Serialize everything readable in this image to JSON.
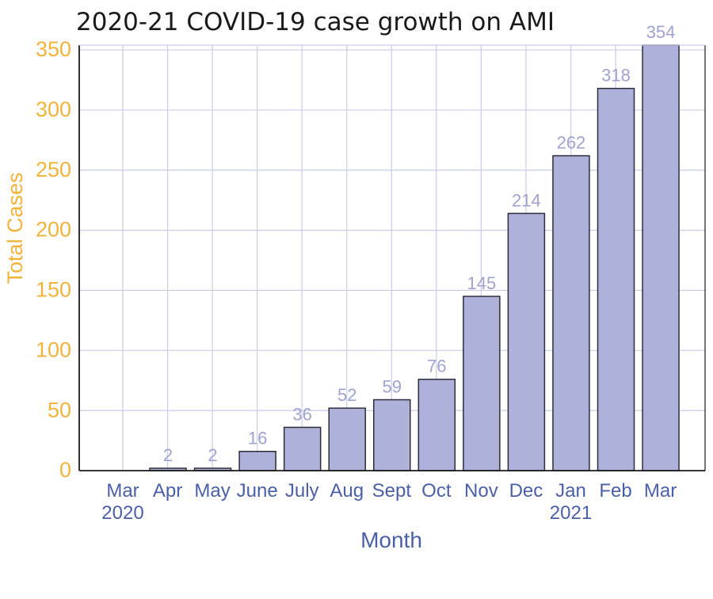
{
  "colors": {
    "bar_fill": "#aeb1d9",
    "bar_stroke": "#2d2d3a",
    "grid": "#c9cce6",
    "ytick": "#f2b33a",
    "xtick": "#4a5fa8",
    "ylabel": "#f2b33a",
    "xlabel": "#4a5fa8",
    "data_label": "#9ea3cf",
    "axis": "#1a1a1a"
  },
  "chart_data": {
    "type": "bar",
    "title": "2020-21 COVID-19 case growth on AMI",
    "xlabel": "Month",
    "ylabel": "Total Cases",
    "categories": [
      "Mar",
      "Apr",
      "May",
      "June",
      "July",
      "Aug",
      "Sept",
      "Oct",
      "Nov",
      "Dec",
      "Jan",
      "Feb",
      "Mar"
    ],
    "category_sublabels": [
      "2020",
      "",
      "",
      "",
      "",
      "",
      "",
      "",
      "",
      "",
      "2021",
      "",
      ""
    ],
    "values": [
      0,
      2,
      2,
      16,
      36,
      52,
      59,
      76,
      145,
      214,
      262,
      318,
      354
    ],
    "data_labels": [
      "",
      "2",
      "2",
      "16",
      "36",
      "52",
      "59",
      "76",
      "145",
      "214",
      "262",
      "318",
      "354"
    ],
    "yticks": [
      0,
      50,
      100,
      150,
      200,
      250,
      300,
      350
    ],
    "ylim": [
      0,
      354
    ],
    "grid": true,
    "legend": "none"
  }
}
